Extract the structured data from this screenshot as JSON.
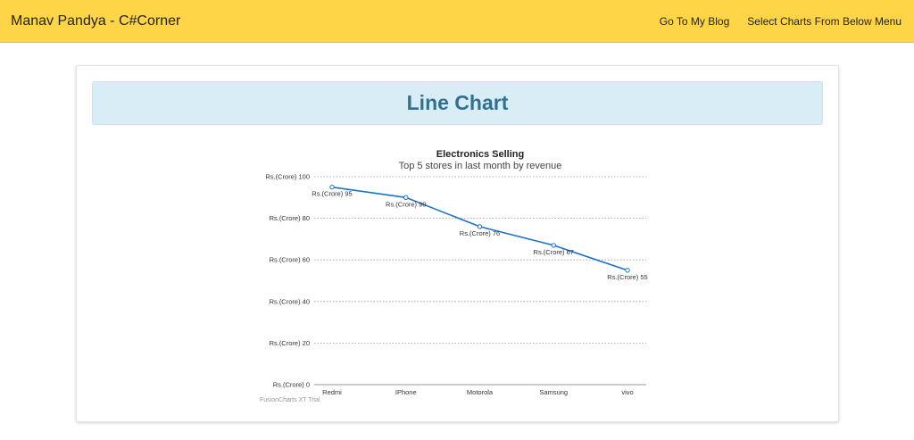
{
  "navbar": {
    "brand": "Manav Pandya - C#Corner",
    "links": [
      "Go To My Blog",
      "Select Charts From Below Menu"
    ]
  },
  "panel": {
    "heading": "Line Chart"
  },
  "colors": {
    "navbar_bg": "#fed546",
    "heading_bg": "#d9edf7",
    "heading_text": "#31708f",
    "line": "#1a73c9"
  },
  "chart_data": {
    "type": "line",
    "title": "Electronics Selling",
    "subtitle": "Top 5 stores in last month by revenue",
    "categories": [
      "Redmi",
      "IPhone",
      "Motorola",
      "Samsung",
      "vivo"
    ],
    "values": [
      95,
      90,
      76,
      67,
      55
    ],
    "value_labels": [
      "Rs.(Crore) 95",
      "Rs.(Crore) 90",
      "Rs.(Crore) 76",
      "Rs.(Crore) 67",
      "Rs.(Crore) 55"
    ],
    "y_ticks": [
      0,
      20,
      40,
      60,
      80,
      100
    ],
    "y_tick_labels": [
      "Rs.(Crore) 0",
      "Rs.(Crore) 20",
      "Rs.(Crore) 40",
      "Rs.(Crore) 60",
      "Rs.(Crore) 80",
      "Rs.(Crore) 100"
    ],
    "ylim": [
      0,
      100
    ],
    "xlabel": "",
    "ylabel": "",
    "grid": true,
    "watermark": "FusionCharts XT Trial"
  }
}
